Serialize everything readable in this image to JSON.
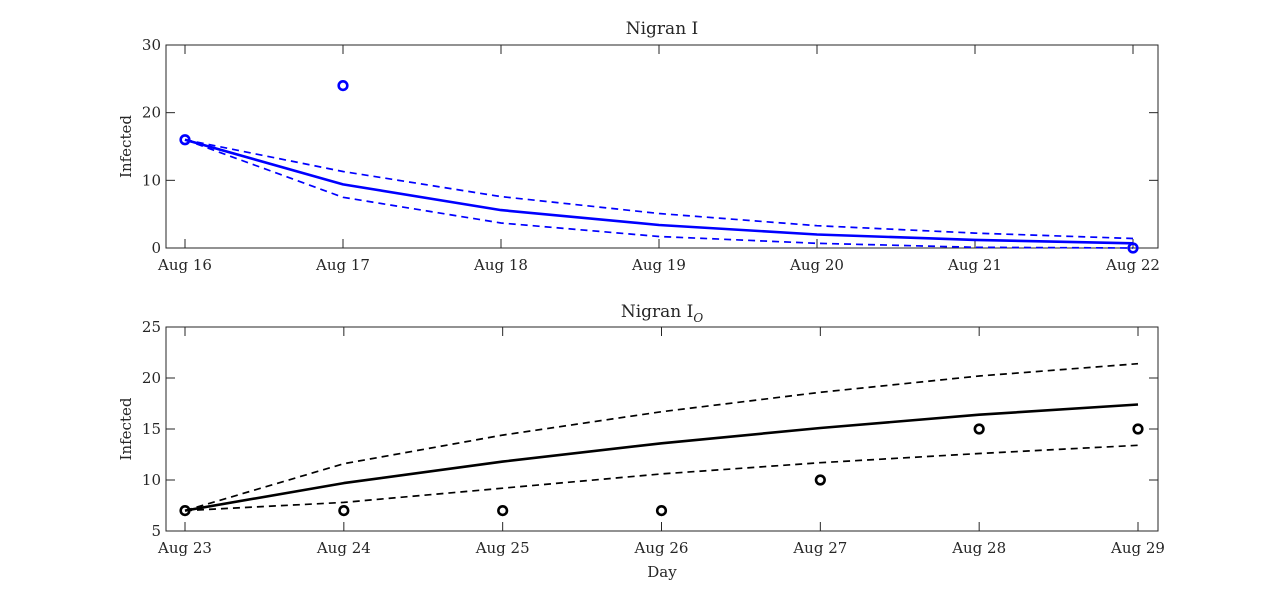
{
  "chart_data": [
    {
      "type": "line",
      "title": "Nigran I",
      "title_main": "Nigran I",
      "title_sub": "",
      "xlabel": "",
      "ylabel": "Infected",
      "x": [
        "Aug 16",
        "Aug 17",
        "Aug 18",
        "Aug 19",
        "Aug 20",
        "Aug 21",
        "Aug 22"
      ],
      "ylim": [
        0,
        30
      ],
      "yticks": [
        0,
        10,
        20,
        30
      ],
      "color": "#0000ff",
      "grid": false,
      "series": [
        {
          "role": "model",
          "style": "solid",
          "values": [
            16,
            9.4,
            5.6,
            3.4,
            2.0,
            1.2,
            0.7
          ]
        },
        {
          "role": "upper-bound",
          "style": "dashed",
          "values": [
            16,
            11.3,
            7.6,
            5.1,
            3.3,
            2.2,
            1.4
          ]
        },
        {
          "role": "lower-bound",
          "style": "dashed",
          "values": [
            16,
            7.5,
            3.7,
            1.7,
            0.7,
            0.1,
            0
          ]
        },
        {
          "role": "observed",
          "style": "markers",
          "values": [
            16,
            24,
            null,
            null,
            null,
            null,
            0
          ]
        }
      ]
    },
    {
      "type": "line",
      "title": "Nigran I_O",
      "title_main": "Nigran I",
      "title_sub": "O",
      "xlabel": "Day",
      "ylabel": "Infected",
      "x": [
        "Aug 23",
        "Aug 24",
        "Aug 25",
        "Aug 26",
        "Aug 27",
        "Aug 28",
        "Aug 29"
      ],
      "ylim": [
        5,
        25
      ],
      "yticks": [
        5,
        10,
        15,
        20,
        25
      ],
      "color": "#000000",
      "grid": false,
      "series": [
        {
          "role": "model",
          "style": "solid",
          "values": [
            7,
            9.7,
            11.8,
            13.6,
            15.1,
            16.4,
            17.4
          ]
        },
        {
          "role": "upper-bound",
          "style": "dashed",
          "values": [
            7,
            11.6,
            14.4,
            16.7,
            18.6,
            20.2,
            21.4
          ]
        },
        {
          "role": "lower-bound",
          "style": "dashed",
          "values": [
            7,
            7.8,
            9.2,
            10.6,
            11.7,
            12.6,
            13.4
          ]
        },
        {
          "role": "observed",
          "style": "markers",
          "values": [
            7,
            7,
            7,
            7,
            10,
            15,
            15
          ]
        }
      ]
    }
  ]
}
